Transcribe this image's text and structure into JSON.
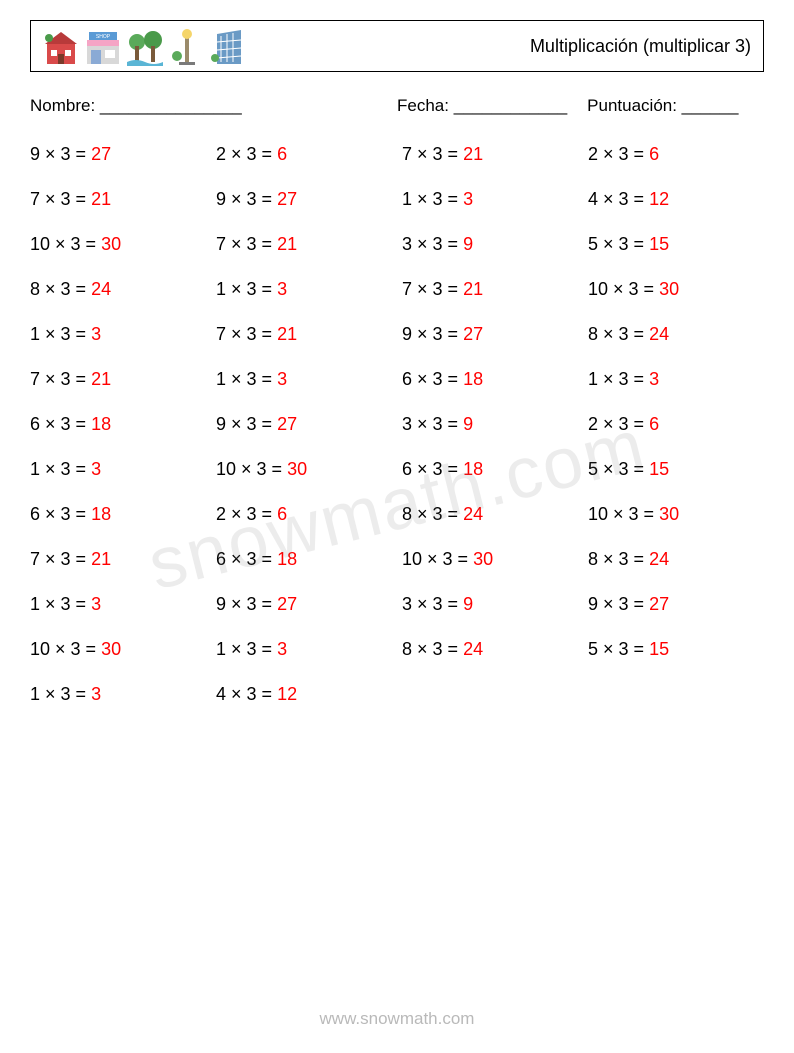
{
  "header": {
    "title": "Multiplicación (multiplicar 3)"
  },
  "info": {
    "name_label": "Nombre: _______________",
    "date_label": "Fecha: ____________",
    "score_label": "Puntuación: ______"
  },
  "styling": {
    "text_color": "#000000",
    "answer_color": "#ff0000",
    "background_color": "#ffffff",
    "border_color": "#000000",
    "watermark_color": "rgba(120,120,120,0.14)",
    "footer_color": "rgba(100,100,100,0.45)",
    "body_fontsize": 18,
    "columns": 4
  },
  "problems": [
    {
      "a": 9,
      "b": 3,
      "ans": 27
    },
    {
      "a": 2,
      "b": 3,
      "ans": 6
    },
    {
      "a": 7,
      "b": 3,
      "ans": 21
    },
    {
      "a": 2,
      "b": 3,
      "ans": 6
    },
    {
      "a": 7,
      "b": 3,
      "ans": 21
    },
    {
      "a": 9,
      "b": 3,
      "ans": 27
    },
    {
      "a": 1,
      "b": 3,
      "ans": 3
    },
    {
      "a": 4,
      "b": 3,
      "ans": 12
    },
    {
      "a": 10,
      "b": 3,
      "ans": 30
    },
    {
      "a": 7,
      "b": 3,
      "ans": 21
    },
    {
      "a": 3,
      "b": 3,
      "ans": 9
    },
    {
      "a": 5,
      "b": 3,
      "ans": 15
    },
    {
      "a": 8,
      "b": 3,
      "ans": 24
    },
    {
      "a": 1,
      "b": 3,
      "ans": 3
    },
    {
      "a": 7,
      "b": 3,
      "ans": 21
    },
    {
      "a": 10,
      "b": 3,
      "ans": 30
    },
    {
      "a": 1,
      "b": 3,
      "ans": 3
    },
    {
      "a": 7,
      "b": 3,
      "ans": 21
    },
    {
      "a": 9,
      "b": 3,
      "ans": 27
    },
    {
      "a": 8,
      "b": 3,
      "ans": 24
    },
    {
      "a": 7,
      "b": 3,
      "ans": 21
    },
    {
      "a": 1,
      "b": 3,
      "ans": 3
    },
    {
      "a": 6,
      "b": 3,
      "ans": 18
    },
    {
      "a": 1,
      "b": 3,
      "ans": 3
    },
    {
      "a": 6,
      "b": 3,
      "ans": 18
    },
    {
      "a": 9,
      "b": 3,
      "ans": 27
    },
    {
      "a": 3,
      "b": 3,
      "ans": 9
    },
    {
      "a": 2,
      "b": 3,
      "ans": 6
    },
    {
      "a": 1,
      "b": 3,
      "ans": 3
    },
    {
      "a": 10,
      "b": 3,
      "ans": 30
    },
    {
      "a": 6,
      "b": 3,
      "ans": 18
    },
    {
      "a": 5,
      "b": 3,
      "ans": 15
    },
    {
      "a": 6,
      "b": 3,
      "ans": 18
    },
    {
      "a": 2,
      "b": 3,
      "ans": 6
    },
    {
      "a": 8,
      "b": 3,
      "ans": 24
    },
    {
      "a": 10,
      "b": 3,
      "ans": 30
    },
    {
      "a": 7,
      "b": 3,
      "ans": 21
    },
    {
      "a": 6,
      "b": 3,
      "ans": 18
    },
    {
      "a": 10,
      "b": 3,
      "ans": 30
    },
    {
      "a": 8,
      "b": 3,
      "ans": 24
    },
    {
      "a": 1,
      "b": 3,
      "ans": 3
    },
    {
      "a": 9,
      "b": 3,
      "ans": 27
    },
    {
      "a": 3,
      "b": 3,
      "ans": 9
    },
    {
      "a": 9,
      "b": 3,
      "ans": 27
    },
    {
      "a": 10,
      "b": 3,
      "ans": 30
    },
    {
      "a": 1,
      "b": 3,
      "ans": 3
    },
    {
      "a": 8,
      "b": 3,
      "ans": 24
    },
    {
      "a": 5,
      "b": 3,
      "ans": 15
    },
    {
      "a": 1,
      "b": 3,
      "ans": 3
    },
    {
      "a": 4,
      "b": 3,
      "ans": 12
    }
  ],
  "watermark": "snowmath.com",
  "footer": "www.snowmath.com"
}
